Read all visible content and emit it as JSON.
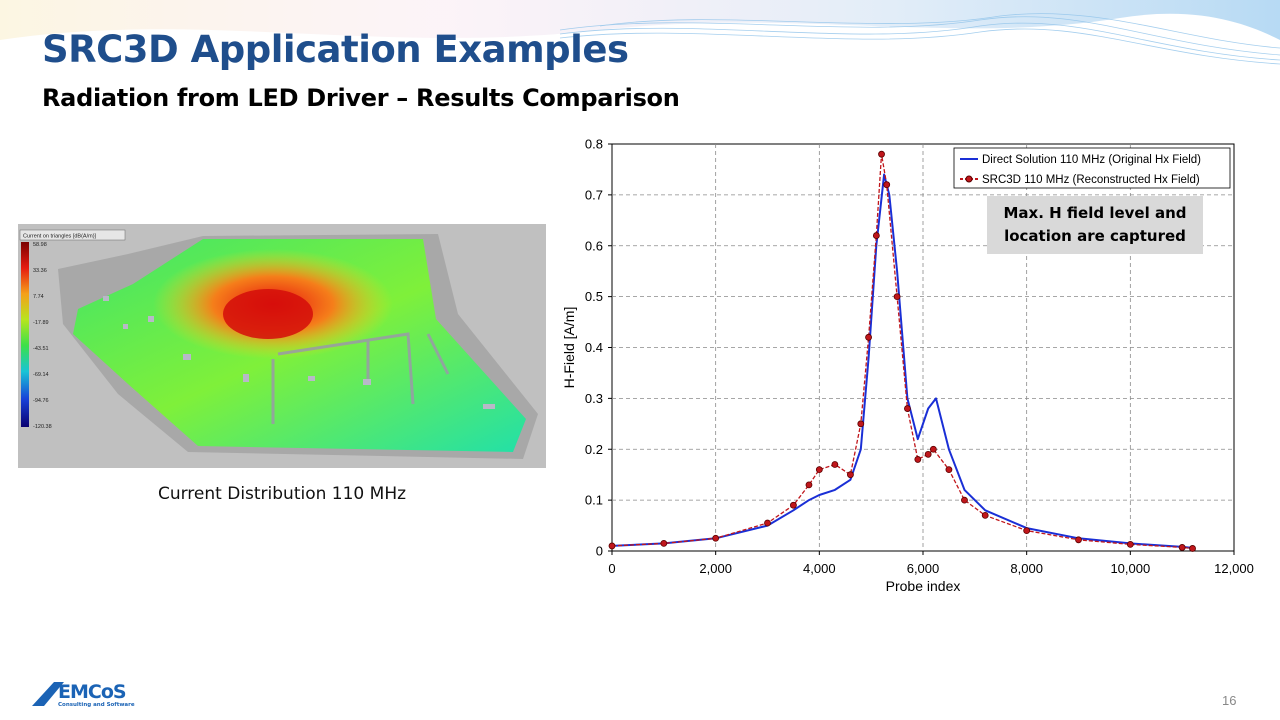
{
  "slide": {
    "title": "SRC3D Application Examples",
    "subtitle": "Radiation from LED Driver – Results Comparison",
    "page_number": "16",
    "logo_text": "EMCoS",
    "logo_tagline": "Consulting and Software"
  },
  "figure": {
    "caption": "Current Distribution 110 MHz",
    "legend_title": "Current on triangles [dB(A/m)]",
    "colorbar_ticks": [
      "58.98",
      "33.36",
      "7.74",
      "-17.89",
      "-43.51",
      "-69.14",
      "-94.76",
      "-120.38"
    ]
  },
  "annotation": {
    "line1": "Max. H field level and",
    "line2": "location are captured"
  },
  "chart_data": {
    "type": "line",
    "xlabel": "Probe index",
    "ylabel": "H-Field [A/m]",
    "xlim": [
      0,
      12000
    ],
    "ylim": [
      0,
      0.8
    ],
    "x_ticks": [
      "0",
      "2,000",
      "4,000",
      "6,000",
      "8,000",
      "10,000",
      "12,000"
    ],
    "y_ticks": [
      "0",
      "0.1",
      "0.2",
      "0.3",
      "0.4",
      "0.5",
      "0.6",
      "0.7",
      "0.8"
    ],
    "grid": true,
    "legend_position": "top-right",
    "series": [
      {
        "name": "Direct Solution 110 MHz (Original Hx Field)",
        "color": "#1a2fd6",
        "x": [
          0,
          1000,
          2000,
          3000,
          3500,
          3800,
          4000,
          4300,
          4600,
          4800,
          4950,
          5100,
          5250,
          5350,
          5500,
          5700,
          5900,
          6100,
          6250,
          6500,
          6800,
          7200,
          8000,
          9000,
          10000,
          11000,
          11200
        ],
        "y": [
          0.01,
          0.015,
          0.025,
          0.05,
          0.08,
          0.1,
          0.11,
          0.12,
          0.14,
          0.2,
          0.38,
          0.6,
          0.74,
          0.7,
          0.55,
          0.3,
          0.22,
          0.28,
          0.3,
          0.2,
          0.12,
          0.08,
          0.045,
          0.025,
          0.015,
          0.008,
          0.006
        ]
      },
      {
        "name": "SRC3D 110 MHz (Reconstructed Hx Field)",
        "color": "#c0161b",
        "x": [
          0,
          1000,
          2000,
          3000,
          3500,
          3800,
          4000,
          4300,
          4600,
          4800,
          4950,
          5100,
          5200,
          5300,
          5500,
          5700,
          5900,
          6100,
          6200,
          6500,
          6800,
          7200,
          8000,
          9000,
          10000,
          11000,
          11200
        ],
        "y": [
          0.01,
          0.015,
          0.025,
          0.055,
          0.09,
          0.13,
          0.16,
          0.17,
          0.15,
          0.25,
          0.42,
          0.62,
          0.78,
          0.72,
          0.5,
          0.28,
          0.18,
          0.19,
          0.2,
          0.16,
          0.1,
          0.07,
          0.04,
          0.022,
          0.013,
          0.007,
          0.005
        ]
      }
    ]
  }
}
